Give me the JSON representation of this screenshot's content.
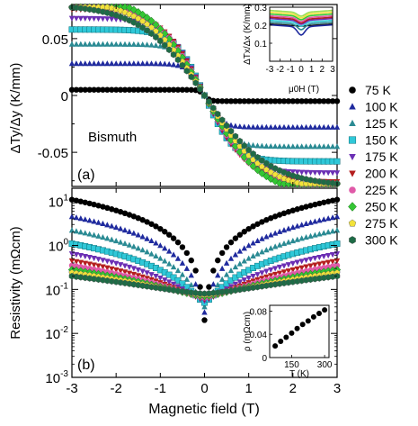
{
  "legend": {
    "placement": "right",
    "entries": [
      {
        "label": "75 K",
        "color": "#000000",
        "marker": "circle"
      },
      {
        "label": "100 K",
        "color": "#1f2a9e",
        "marker": "triangle-up"
      },
      {
        "label": "125 K",
        "color": "#2a8a93",
        "marker": "triangle-up"
      },
      {
        "label": "150 K",
        "color": "#2fc8d8",
        "marker": "square"
      },
      {
        "label": "175 K",
        "color": "#6b2fb4",
        "marker": "triangle-down"
      },
      {
        "label": "200 K",
        "color": "#b41e1e",
        "marker": "triangle-down"
      },
      {
        "label": "225 K",
        "color": "#e05aa8",
        "marker": "circle"
      },
      {
        "label": "250 K",
        "color": "#34c634",
        "marker": "diamond"
      },
      {
        "label": "275 K",
        "color": "#f2e23a",
        "marker": "pentagon"
      },
      {
        "label": "300 K",
        "color": "#1e6b46",
        "marker": "hexagon"
      }
    ]
  },
  "chart_data": [
    {
      "id": "panel-a",
      "type": "scatter",
      "panel_label": "(a)",
      "annotation": "Bismuth",
      "xlabel": "",
      "ylabel": "ΔTy/Δy (K/mm)",
      "xlim": [
        -3,
        3
      ],
      "ylim": [
        -0.08,
        0.08
      ],
      "xticks": [
        -3,
        -2,
        -1,
        0,
        1,
        2,
        3
      ],
      "yticks": [
        -0.05,
        0,
        0.05
      ],
      "ytick_labels": [
        "-0.05",
        "0",
        "0.05"
      ],
      "grid": false,
      "series": [
        {
          "name": "75 K",
          "sat": 0.005,
          "b0": 0.12
        },
        {
          "name": "100 K",
          "sat": 0.028,
          "b0": 0.35
        },
        {
          "name": "125 K",
          "sat": 0.045,
          "b0": 0.5
        },
        {
          "name": "150 K",
          "sat": 0.058,
          "b0": 0.65
        },
        {
          "name": "175 K",
          "sat": 0.068,
          "b0": 0.8
        },
        {
          "name": "200 K",
          "sat": 0.076,
          "b0": 0.95
        },
        {
          "name": "225 K",
          "sat": 0.082,
          "b0": 1.1
        },
        {
          "name": "250 K",
          "sat": 0.088,
          "b0": 1.25
        },
        {
          "name": "275 K",
          "sat": 0.084,
          "b0": 1.35
        },
        {
          "name": "300 K",
          "sat": 0.08,
          "b0": 1.45
        }
      ]
    },
    {
      "id": "panel-a-inset",
      "type": "line",
      "xlabel": "μ0H (T)",
      "ylabel": "ΔTx/Δx (K/mm)",
      "xlim": [
        -3,
        3
      ],
      "ylim": [
        0,
        0.3
      ],
      "xticks": [
        -3,
        -2,
        -1,
        0,
        1,
        2,
        3
      ],
      "yticks": [
        0.1,
        0.2,
        0.3
      ],
      "ytick_labels": [
        "0.1",
        "0.2",
        "0.3"
      ],
      "series": [
        {
          "name": "75 K",
          "base": 0.195,
          "dip": 0.0
        },
        {
          "name": "100 K",
          "base": 0.19,
          "dip": 0.045
        },
        {
          "name": "125 K",
          "base": 0.205,
          "dip": 0.03
        },
        {
          "name": "150 K",
          "base": 0.215,
          "dip": 0.02
        },
        {
          "name": "175 K",
          "base": 0.225,
          "dip": 0.02
        },
        {
          "name": "200 K",
          "base": 0.232,
          "dip": 0.02
        },
        {
          "name": "225 K",
          "base": 0.24,
          "dip": 0.02
        },
        {
          "name": "250 K",
          "base": 0.25,
          "dip": 0.02
        },
        {
          "name": "275 K",
          "base": 0.26,
          "dip": 0.02
        },
        {
          "name": "300 K",
          "base": 0.27,
          "dip": 0.02
        }
      ]
    },
    {
      "id": "panel-b",
      "type": "scatter",
      "panel_label": "(b)",
      "xlabel": "Magnetic field (T)",
      "ylabel": "Resistivity (mΩcm)",
      "yscale": "log",
      "xlim": [
        -3,
        3
      ],
      "ylim": [
        0.001,
        20
      ],
      "xticks": [
        -3,
        -2,
        -1,
        0,
        1,
        2,
        3
      ],
      "xtick_labels": [
        "-3",
        "-2",
        "-1",
        "0",
        "1",
        "2",
        "3"
      ],
      "yticks": [
        0.001,
        0.01,
        0.1,
        1,
        10
      ],
      "ytick_exponents": [
        "-3",
        "-2",
        "-1",
        "0",
        "1"
      ],
      "grid": false,
      "series": [
        {
          "name": "75 K",
          "r0": 0.02,
          "r3": 11.0
        },
        {
          "name": "100 K",
          "r0": 0.03,
          "r3": 4.5
        },
        {
          "name": "125 K",
          "r0": 0.04,
          "r3": 2.2
        },
        {
          "name": "150 K",
          "r0": 0.05,
          "r3": 1.1
        },
        {
          "name": "175 K",
          "r0": 0.055,
          "r3": 0.65
        },
        {
          "name": "200 K",
          "r0": 0.06,
          "r3": 0.45
        },
        {
          "name": "225 K",
          "r0": 0.065,
          "r3": 0.35
        },
        {
          "name": "250 K",
          "r0": 0.07,
          "r3": 0.28
        },
        {
          "name": "275 K",
          "r0": 0.075,
          "r3": 0.24
        },
        {
          "name": "300 K",
          "r0": 0.08,
          "r3": 0.2
        }
      ]
    },
    {
      "id": "panel-b-inset",
      "type": "scatter",
      "xlabel": "T (K)",
      "ylabel": "ρ (mΩcm)",
      "xlim": [
        50,
        320
      ],
      "ylim": [
        0,
        0.09
      ],
      "xticks": [
        150,
        300
      ],
      "yticks": [
        0,
        0.04,
        0.08
      ],
      "ytick_labels": [
        "0",
        "0.04",
        "0.08"
      ],
      "x": [
        75,
        100,
        125,
        150,
        175,
        200,
        225,
        250,
        275,
        300
      ],
      "y": [
        0.02,
        0.028,
        0.035,
        0.042,
        0.05,
        0.057,
        0.063,
        0.07,
        0.076,
        0.082
      ]
    }
  ]
}
